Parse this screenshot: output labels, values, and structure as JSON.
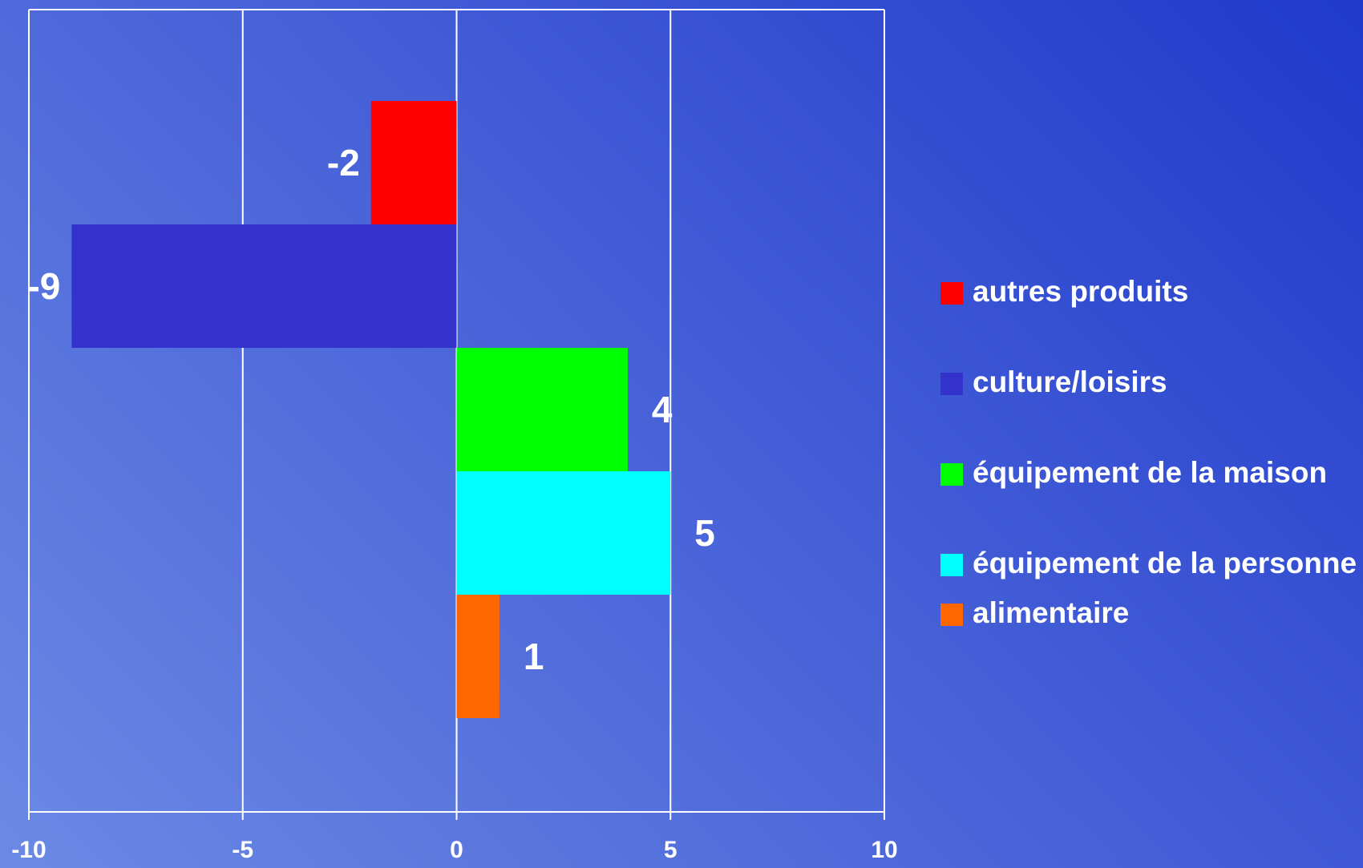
{
  "chart_data": {
    "type": "bar",
    "orientation": "horizontal",
    "categories": [
      "autres produits",
      "culture/loisirs",
      "équipement de la maison",
      "équipement de la personne",
      "alimentaire"
    ],
    "values": [
      -2,
      -9,
      4,
      5,
      1
    ],
    "data_labels": [
      "-2",
      "-9",
      "4",
      "5",
      "1"
    ],
    "colors": [
      "#ff0000",
      "#3333cc",
      "#00ff00",
      "#00ffff",
      "#ff6600"
    ],
    "xlim": [
      -10,
      10
    ],
    "xticks": [
      -10,
      -5,
      0,
      5,
      10
    ],
    "xtick_labels": [
      "-10",
      "-5",
      "0",
      "5",
      "10"
    ],
    "grid": true,
    "legend_position": "right",
    "legend_order": [
      0,
      1,
      2,
      3,
      4
    ]
  }
}
